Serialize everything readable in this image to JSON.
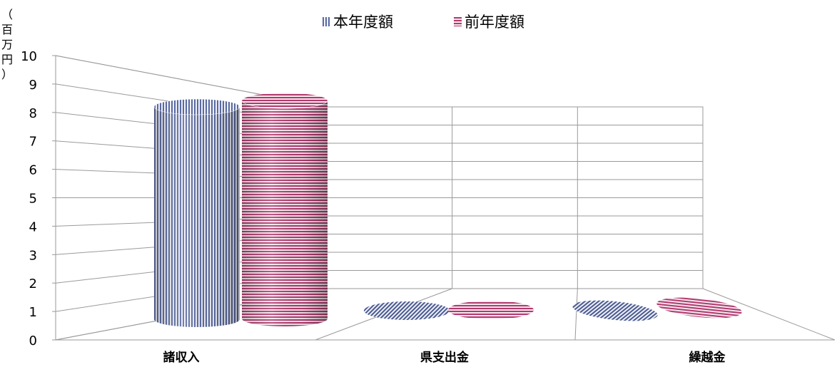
{
  "chart_data": {
    "type": "bar",
    "style": "3d-cylinder",
    "unit_label": "（百万円）",
    "categories": [
      "諸収入",
      "県支出金",
      "繰越金"
    ],
    "series": [
      {
        "name": "本年度額",
        "values": [
          7.7,
          0,
          0
        ],
        "color": "#5a6aa0",
        "pattern": "vertical-stripes"
      },
      {
        "name": "前年度額",
        "values": [
          7.9,
          0,
          0
        ],
        "color": "#b03a6e",
        "pattern": "horizontal-stripes"
      }
    ],
    "ylim": [
      0,
      10
    ],
    "yticks": [
      "0",
      "1",
      "2",
      "3",
      "4",
      "5",
      "6",
      "7",
      "8",
      "9",
      "10"
    ],
    "legend_position": "top",
    "grid": true
  }
}
